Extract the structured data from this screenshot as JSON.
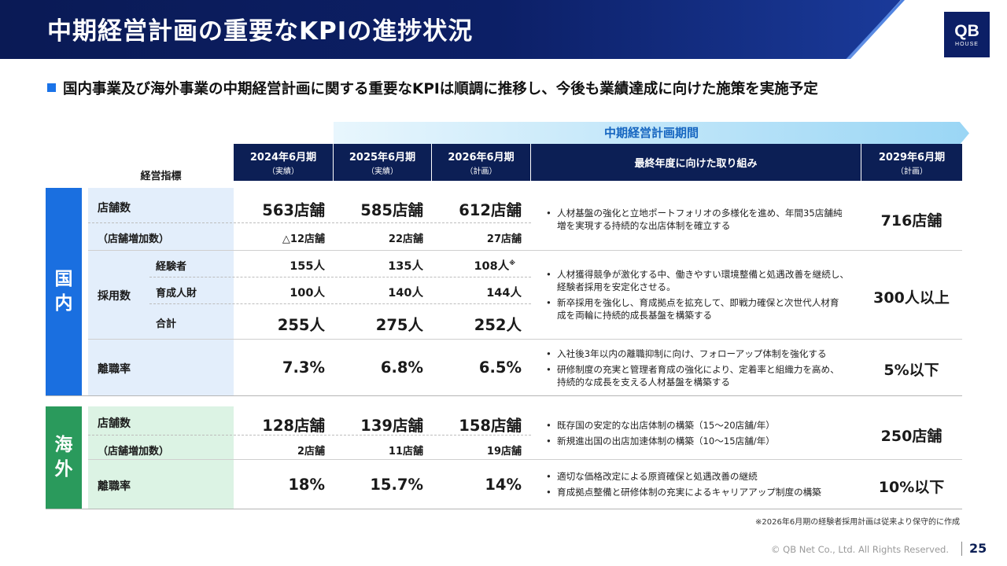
{
  "header": {
    "title": "中期経営計画の重要なKPIの進捗状況",
    "logo_main": "QB",
    "logo_sub": "HOUSE"
  },
  "lead": "国内事業及び海外事業の中期経営計画に関する重要なKPIは順調に推移し、今後も業績達成に向けた施策を実施予定",
  "table": {
    "period_banner": "中期経営計画期間",
    "kpi_header": "経営指標",
    "columns": [
      {
        "label": "2024年6月期",
        "sub": "（実績）"
      },
      {
        "label": "2025年6月期",
        "sub": "（実績）"
      },
      {
        "label": "2026年6月期",
        "sub": "（計画）"
      },
      {
        "label": "最終年度に向けた取り組み",
        "sub": ""
      },
      {
        "label": "2029年6月期",
        "sub": "（計画）"
      }
    ],
    "domestic": {
      "segment": [
        "国",
        "内"
      ],
      "stores": {
        "label": "店舗数",
        "values": [
          "563店舗",
          "585店舗",
          "612店舗"
        ],
        "sub_label": "（店舗増加数）",
        "sub_values": [
          "△12店舗",
          "22店舗",
          "27店舗"
        ],
        "target": "716店舗",
        "initiatives": [
          [
            "人材基盤の強化と立地ポートフォリオの多様化を進め、年間35店舗純",
            "増を実現する持続的な出店体制を確立する"
          ]
        ]
      },
      "hiring": {
        "label": "採用数",
        "rows": [
          {
            "label": "経験者",
            "values": [
              "155人",
              "135人",
              "108人"
            ],
            "mark": "※"
          },
          {
            "label": "育成人財",
            "values": [
              "100人",
              "140人",
              "144人"
            ]
          },
          {
            "label": "合計",
            "values": [
              "255人",
              "275人",
              "252人"
            ]
          }
        ],
        "target": "300人以上",
        "initiatives": [
          [
            "人材獲得競争が激化する中、働きやすい環境整備と処遇改善を継続し、",
            "経験者採用を安定化させる。"
          ],
          [
            "新卒採用を強化し、育成拠点を拡充して、即戦力確保と次世代人材育",
            "成を両輪に持続的成長基盤を構築する"
          ]
        ]
      },
      "turnover": {
        "label": "離職率",
        "values": [
          "7.3%",
          "6.8%",
          "6.5%"
        ],
        "target": "5%以下",
        "initiatives": [
          [
            "入社後3年以内の離職抑制に向け、フォローアップ体制を強化する"
          ],
          [
            "研修制度の充実と管理者育成の強化により、定着率と組織力を高め、",
            "持続的な成長を支える人材基盤を構築する"
          ]
        ]
      }
    },
    "overseas": {
      "segment": [
        "海",
        "外"
      ],
      "stores": {
        "label": "店舗数",
        "values": [
          "128店舗",
          "139店舗",
          "158店舗"
        ],
        "sub_label": "（店舗増加数）",
        "sub_values": [
          "2店舗",
          "11店舗",
          "19店舗"
        ],
        "target": "250店舗",
        "initiatives": [
          [
            "既存国の安定的な出店体制の構築（15～20店舗/年）"
          ],
          [
            "新規進出国の出店加速体制の構築（10～15店舗/年）"
          ]
        ]
      },
      "turnover": {
        "label": "離職率",
        "values": [
          "18%",
          "15.7%",
          "14%"
        ],
        "target": "10%以下",
        "initiatives": [
          [
            "適切な価格改定による原資確保と処遇改善の継続"
          ],
          [
            "育成拠点整備と研修体制の充実によるキャリアアップ制度の構築"
          ]
        ]
      }
    }
  },
  "footnote": "※2026年6月期の経験者採用計画は従来より保守的に作成",
  "footer": {
    "copyright": "© QB Net Co., Ltd. All Rights Reserved.",
    "page": "25"
  }
}
